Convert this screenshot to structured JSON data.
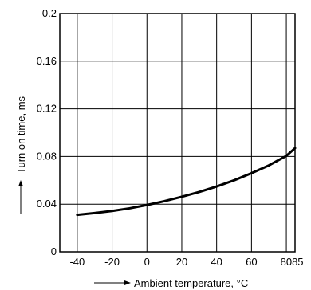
{
  "chart_data": {
    "type": "line",
    "title": "",
    "xlabel": "Ambient temperature, °C",
    "ylabel": "Turn on time, ms",
    "xlim": [
      -50,
      85
    ],
    "ylim": [
      0,
      0.2
    ],
    "x_ticks": [
      -40,
      -20,
      0,
      20,
      40,
      60,
      80,
      85
    ],
    "x_tick_labels": [
      "-40",
      "-20",
      "0",
      "20",
      "40",
      "60",
      "80",
      "85"
    ],
    "y_ticks": [
      0,
      0.04,
      0.08,
      0.12,
      0.16,
      0.2
    ],
    "y_tick_labels": [
      "0",
      "0.04",
      "0.08",
      "0.12",
      "0.16",
      "0.2"
    ],
    "grid": true,
    "series": [
      {
        "x": [
          -40,
          -30,
          -20,
          -10,
          0,
          10,
          20,
          30,
          40,
          50,
          60,
          70,
          80,
          85
        ],
        "y": [
          0.031,
          0.0325,
          0.0343,
          0.0365,
          0.0393,
          0.0425,
          0.0462,
          0.0502,
          0.0548,
          0.06,
          0.066,
          0.0725,
          0.0805,
          0.087
        ]
      }
    ]
  }
}
